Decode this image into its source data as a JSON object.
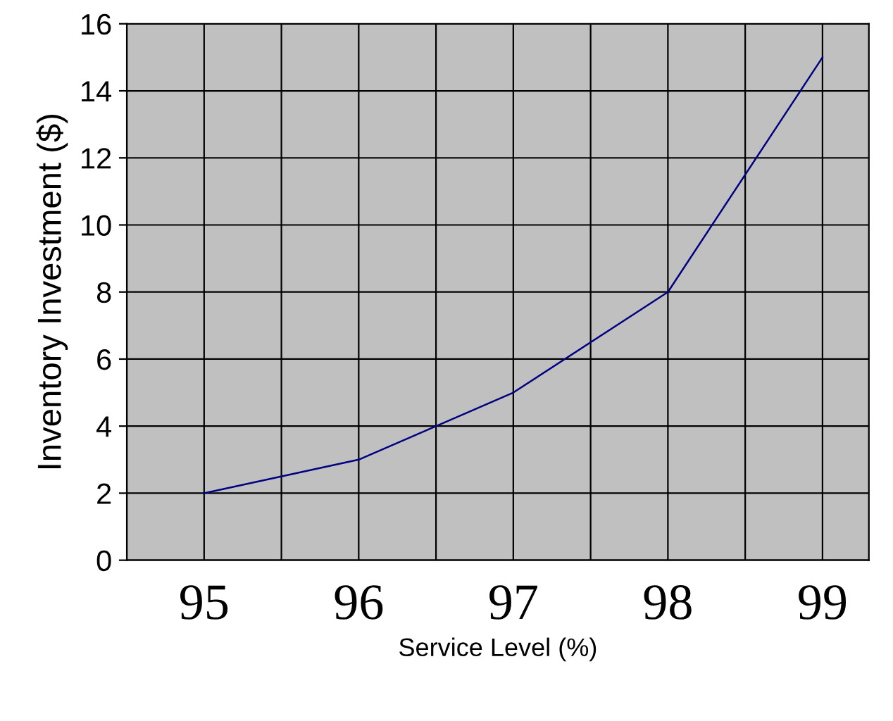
{
  "chart_data": {
    "type": "line",
    "xlabel": "Service Level (%)",
    "ylabel": "Inventory Investment ($)",
    "categories": [
      "95",
      "96",
      "97",
      "98",
      "99"
    ],
    "series": [
      {
        "color": "#000080",
        "values": [
          2,
          3,
          5,
          8,
          15
        ]
      }
    ],
    "ylim": [
      0,
      16
    ],
    "yticks": [
      0,
      2,
      4,
      6,
      8,
      10,
      12,
      14,
      16
    ],
    "grid": true,
    "marker": "none",
    "line_style": "solid"
  }
}
